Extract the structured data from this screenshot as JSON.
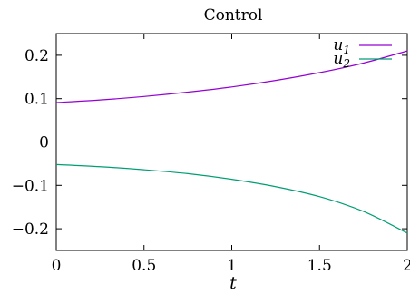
{
  "chart_data": {
    "type": "line",
    "title": "Control",
    "xlabel": "t",
    "ylabel": "",
    "xlim": [
      0,
      2
    ],
    "ylim": [
      -0.25,
      0.25
    ],
    "xticks": [
      "0",
      "0.5",
      "1",
      "1.5",
      "2"
    ],
    "yticks": [
      "0.2",
      "0.1",
      "0",
      "−0.1",
      "−0.2"
    ],
    "grid": false,
    "legend_position": "top-right",
    "series": [
      {
        "name": "u1",
        "label_base": "u",
        "label_sub": "1",
        "color": "#9400d3",
        "x": [
          0,
          0.25,
          0.5,
          0.75,
          1.0,
          1.25,
          1.5,
          1.75,
          2.0
        ],
        "y": [
          0.091,
          0.097,
          0.105,
          0.115,
          0.127,
          0.142,
          0.16,
          0.182,
          0.21
        ]
      },
      {
        "name": "u2",
        "label_base": "u",
        "label_sub": "2",
        "color": "#009e73",
        "x": [
          0,
          0.25,
          0.5,
          0.75,
          1.0,
          1.25,
          1.5,
          1.75,
          2.0
        ],
        "y": [
          -0.052,
          -0.057,
          -0.064,
          -0.073,
          -0.086,
          -0.103,
          -0.126,
          -0.16,
          -0.21
        ]
      }
    ]
  }
}
